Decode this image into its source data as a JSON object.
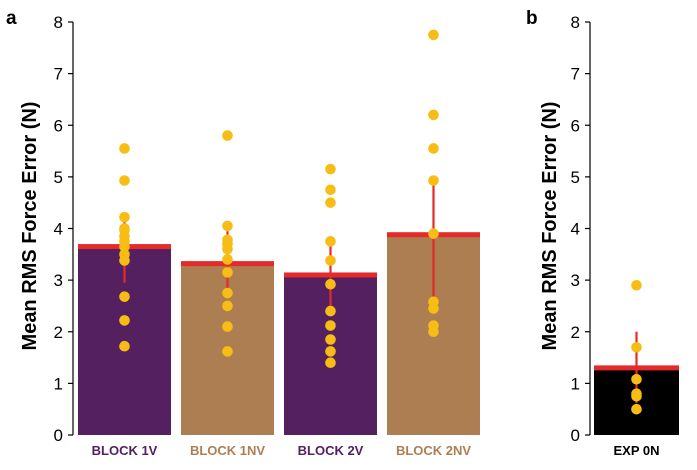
{
  "chart_data": [
    {
      "panel": "a",
      "type": "bar",
      "ylabel": "Mean RMS Force Error  (N)",
      "ylim": [
        0,
        8
      ],
      "yticks": [
        "0",
        "1",
        "2",
        "3",
        "4",
        "5",
        "6",
        "7",
        "8"
      ],
      "categories": [
        "BLOCK 1V",
        "BLOCK 1NV",
        "BLOCK 2V",
        "BLOCK 2NV"
      ],
      "values": [
        3.65,
        3.32,
        3.1,
        3.88
      ],
      "error_low": [
        2.95,
        2.7,
        2.4,
        2.5
      ],
      "error_high": [
        4.25,
        3.95,
        3.85,
        4.95
      ],
      "points": [
        [
          1.72,
          2.22,
          2.68,
          3.38,
          3.5,
          3.65,
          3.75,
          3.85,
          3.97,
          4.0,
          4.22,
          4.93,
          5.55
        ],
        [
          1.62,
          2.1,
          2.5,
          2.75,
          3.15,
          3.4,
          3.6,
          3.7,
          3.78,
          4.05,
          5.8
        ],
        [
          1.4,
          1.62,
          1.85,
          2.12,
          2.4,
          2.92,
          3.38,
          3.75,
          4.5,
          4.75,
          5.15
        ],
        [
          2.0,
          2.12,
          2.45,
          2.58,
          3.9,
          4.93,
          5.55,
          6.2,
          7.75
        ]
      ],
      "colors": [
        "#54205f",
        "#ad7e52",
        "#54205f",
        "#ad7e52"
      ],
      "mean_line_color": "#e52a2a",
      "error_color": "#e52a2a",
      "point_color": "#f7bd15",
      "grid": false
    },
    {
      "panel": "b",
      "type": "bar",
      "ylabel": "Mean RMS Force Error  (N)",
      "ylim": [
        0,
        8
      ],
      "yticks": [
        "0",
        "1",
        "2",
        "3",
        "4",
        "5",
        "6",
        "7",
        "8"
      ],
      "categories": [
        "EXP 0N"
      ],
      "values": [
        1.3
      ],
      "error_low": [
        0.62
      ],
      "error_high": [
        2.0
      ],
      "points": [
        [
          0.5,
          0.75,
          0.8,
          1.08,
          1.7,
          2.9
        ]
      ],
      "colors": [
        "#000000"
      ],
      "mean_line_color": "#e52a2a",
      "error_color": "#e52a2a",
      "point_color": "#f7bd15",
      "grid": false
    }
  ]
}
